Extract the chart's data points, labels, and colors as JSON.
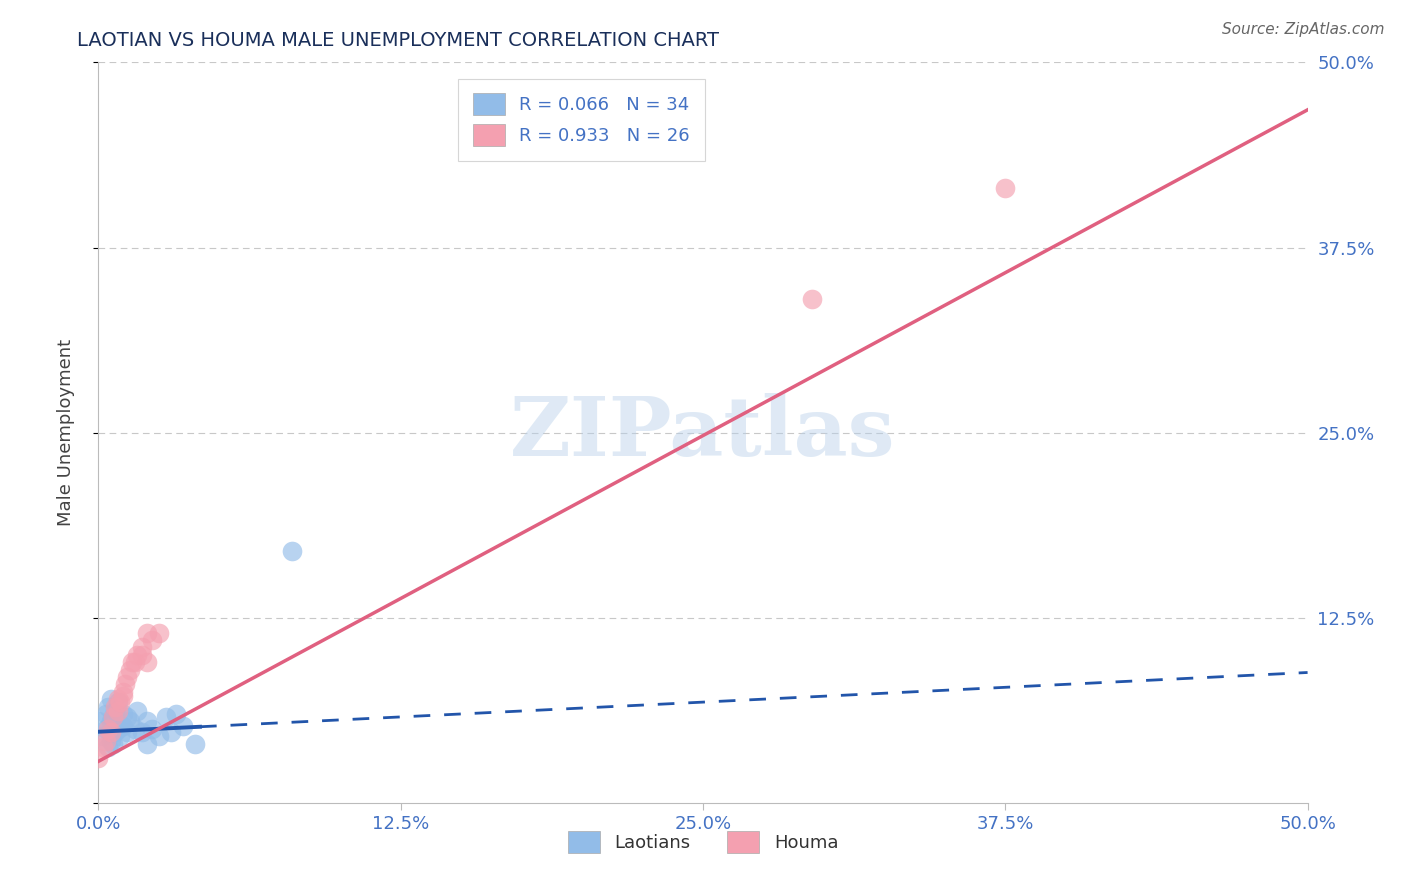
{
  "title": "LAOTIAN VS HOUMA MALE UNEMPLOYMENT CORRELATION CHART",
  "source": "Source: ZipAtlas.com",
  "ylabel": "Male Unemployment",
  "xlim": [
    0.0,
    0.5
  ],
  "ylim": [
    0.0,
    0.5
  ],
  "xtick_vals": [
    0.0,
    0.125,
    0.25,
    0.375,
    0.5
  ],
  "xtick_labels": [
    "0.0%",
    "12.5%",
    "25.0%",
    "37.5%",
    "50.0%"
  ],
  "ytick_vals": [
    0.125,
    0.25,
    0.375,
    0.5
  ],
  "ytick_labels": [
    "12.5%",
    "25.0%",
    "37.5%",
    "50.0%"
  ],
  "watermark": "ZIPatlas",
  "laotian_x": [
    0.0,
    0.002,
    0.003,
    0.003,
    0.004,
    0.004,
    0.005,
    0.005,
    0.005,
    0.006,
    0.006,
    0.007,
    0.007,
    0.008,
    0.008,
    0.009,
    0.01,
    0.01,
    0.012,
    0.012,
    0.013,
    0.015,
    0.016,
    0.018,
    0.02,
    0.02,
    0.022,
    0.025,
    0.028,
    0.03,
    0.032,
    0.035,
    0.04,
    0.08
  ],
  "laotian_y": [
    0.055,
    0.045,
    0.05,
    0.06,
    0.038,
    0.065,
    0.042,
    0.055,
    0.07,
    0.04,
    0.058,
    0.048,
    0.062,
    0.05,
    0.068,
    0.045,
    0.052,
    0.06,
    0.048,
    0.058,
    0.055,
    0.05,
    0.062,
    0.048,
    0.04,
    0.055,
    0.05,
    0.045,
    0.058,
    0.048,
    0.06,
    0.052,
    0.04,
    0.17
  ],
  "houma_x": [
    0.0,
    0.002,
    0.003,
    0.004,
    0.005,
    0.006,
    0.007,
    0.008,
    0.008,
    0.009,
    0.01,
    0.011,
    0.012,
    0.013,
    0.014,
    0.015,
    0.016,
    0.018,
    0.02,
    0.022,
    0.025,
    0.02,
    0.01,
    0.018,
    0.295,
    0.375
  ],
  "houma_y": [
    0.03,
    0.038,
    0.042,
    0.05,
    0.048,
    0.058,
    0.065,
    0.062,
    0.07,
    0.068,
    0.075,
    0.08,
    0.085,
    0.09,
    0.095,
    0.095,
    0.1,
    0.105,
    0.115,
    0.11,
    0.115,
    0.095,
    0.072,
    0.1,
    0.34,
    0.415
  ],
  "laotian_color": "#92bce8",
  "houma_color": "#f4a0b0",
  "laotian_line_color": "#2255aa",
  "houma_line_color": "#e06080",
  "laotian_line_slope": 0.08,
  "laotian_line_intercept": 0.048,
  "houma_line_slope": 0.88,
  "houma_line_intercept": 0.028,
  "solid_cutoff_laotian": 0.042,
  "bg_color": "#ffffff",
  "grid_color": "#c8c8c8",
  "title_color": "#1a2f5a",
  "tick_color": "#4472c4",
  "source_color": "#666666"
}
